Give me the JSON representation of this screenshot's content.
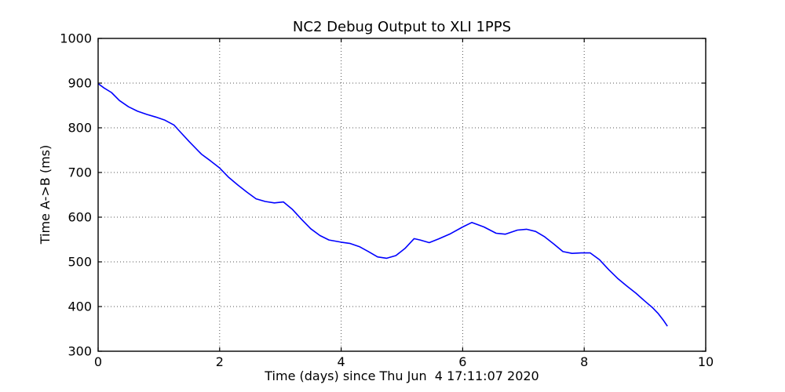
{
  "figure": {
    "title": "NC2 Debug Output to XLI 1PPS",
    "xlabel": "Time (days) since Thu Jun  4 17:11:07 2020",
    "ylabel": "Time A->B (ms)"
  },
  "colors": {
    "line": "#0000ff",
    "grid": "#555555",
    "axis": "#000000",
    "background": "#ffffff"
  },
  "chart_data": {
    "type": "line",
    "title": "NC2 Debug Output to XLI 1PPS",
    "xlabel": "Time (days) since Thu Jun  4 17:11:07 2020",
    "ylabel": "Time A->B (ms)",
    "xlim": [
      0,
      10
    ],
    "ylim": [
      300,
      1000
    ],
    "xticks": [
      0,
      2,
      4,
      6,
      8,
      10
    ],
    "yticks": [
      300,
      400,
      500,
      600,
      700,
      800,
      900,
      1000
    ],
    "grid": true,
    "grid_style": "dotted",
    "legend": false,
    "line_color": "#0000ff",
    "series": [
      {
        "name": "Time A->B",
        "x": [
          0.0,
          0.1,
          0.22,
          0.35,
          0.5,
          0.65,
          0.8,
          0.95,
          1.1,
          1.25,
          1.35,
          1.5,
          1.7,
          1.85,
          2.0,
          2.15,
          2.3,
          2.45,
          2.6,
          2.75,
          2.9,
          3.05,
          3.2,
          3.35,
          3.5,
          3.65,
          3.8,
          4.0,
          4.15,
          4.3,
          4.45,
          4.6,
          4.75,
          4.9,
          5.05,
          5.2,
          5.3,
          5.45,
          5.6,
          5.8,
          6.0,
          6.15,
          6.35,
          6.55,
          6.7,
          6.9,
          7.05,
          7.2,
          7.35,
          7.5,
          7.65,
          7.8,
          7.95,
          8.1,
          8.25,
          8.4,
          8.55,
          8.7,
          8.85,
          9.0,
          9.12,
          9.22,
          9.3,
          9.37
        ],
        "y": [
          899,
          889,
          879,
          861,
          847,
          837,
          830,
          824,
          817,
          806,
          791,
          769,
          741,
          726,
          710,
          689,
          672,
          656,
          641,
          635,
          632,
          634,
          617,
          595,
          574,
          559,
          549,
          544,
          541,
          534,
          523,
          511,
          508,
          514,
          530,
          552,
          549,
          543,
          551,
          563,
          578,
          588,
          578,
          564,
          562,
          571,
          573,
          568,
          556,
          540,
          523,
          519,
          520,
          520,
          505,
          483,
          463,
          446,
          430,
          412,
          398,
          384,
          370,
          356
        ]
      }
    ]
  }
}
